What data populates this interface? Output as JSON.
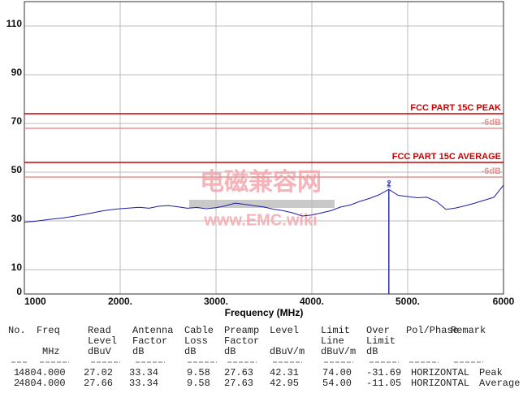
{
  "chart_data": {
    "type": "line",
    "xlabel": "Frequency (MHz)",
    "xlim": [
      1000,
      6000
    ],
    "xticks": [
      {
        "value": 1000,
        "label": "1000"
      },
      {
        "value": 2000,
        "label": "2000."
      },
      {
        "value": 3000,
        "label": "3000."
      },
      {
        "value": 4000,
        "label": "4000."
      },
      {
        "value": 5000,
        "label": "5000."
      },
      {
        "value": 6000,
        "label": "6000"
      }
    ],
    "ylim": [
      0,
      120
    ],
    "yticks": [
      0,
      10,
      30,
      50,
      70,
      90,
      110
    ],
    "grid": true,
    "x": [
      1000,
      1100,
      1200,
      1300,
      1400,
      1500,
      1600,
      1700,
      1800,
      1900,
      2000,
      2100,
      2200,
      2300,
      2400,
      2500,
      2600,
      2700,
      2800,
      2900,
      3000,
      3100,
      3200,
      3300,
      3400,
      3500,
      3600,
      3700,
      3800,
      3900,
      4000,
      4100,
      4200,
      4300,
      4400,
      4500,
      4600,
      4700,
      4804,
      4900,
      5000,
      5100,
      5200,
      5300,
      5400,
      5500,
      5600,
      5700,
      5800,
      5900,
      6000
    ],
    "series": [
      {
        "color": "#1c1ca8",
        "values": [
          29.5,
          29.8,
          30.3,
          30.8,
          31.2,
          31.8,
          32.5,
          33.2,
          34.0,
          34.6,
          35.0,
          35.3,
          35.6,
          35.2,
          36.0,
          36.3,
          35.8,
          35.2,
          35.5,
          35.0,
          35.4,
          36.2,
          37.3,
          36.8,
          36.2,
          35.7,
          34.8,
          34.2,
          33.3,
          32.0,
          32.4,
          33.3,
          34.2,
          35.7,
          36.5,
          38.0,
          39.2,
          40.7,
          42.95,
          40.5,
          40.0,
          39.5,
          39.7,
          38.0,
          34.7,
          35.3,
          36.2,
          37.3,
          38.5,
          39.7,
          44.7
        ]
      }
    ],
    "limits": [
      {
        "label": "FCC PART 15C PEAK",
        "value": 74,
        "color": "#cc0000"
      },
      {
        "label": "-6dB",
        "value": 68,
        "color": "#e89090"
      },
      {
        "label": "FCC PART 15C AVERAGE",
        "value": 54,
        "color": "#cc0000"
      },
      {
        "label": "-6dB",
        "value": 48,
        "color": "#e89090"
      }
    ],
    "markers": [
      {
        "label": "1",
        "x": 4804,
        "value": 42.31
      },
      {
        "label": "2",
        "x": 4804,
        "value": 42.95
      }
    ],
    "watermark": [
      "电磁兼容网",
      "www.EMC.wiki"
    ]
  },
  "table": {
    "header": [
      [
        "No."
      ],
      [
        "Freq",
        "MHz"
      ],
      [
        "Read",
        "Level",
        "dBuV"
      ],
      [
        "Antenna",
        "Factor",
        "dB"
      ],
      [
        "Cable",
        "Loss",
        "dB"
      ],
      [
        "Preamp",
        "Factor",
        "dB"
      ],
      [
        "Level",
        "dBuV/m"
      ],
      [
        "Limit",
        "Line",
        "dBuV/m"
      ],
      [
        "Over",
        "Limit",
        "dB"
      ],
      [
        "Pol/Phase"
      ],
      [
        "Remark"
      ]
    ],
    "rows": [
      [
        "1",
        "4804.000",
        "27.02",
        "33.34",
        "9.58",
        "27.63",
        "42.31",
        "74.00",
        "-31.69",
        "HORIZONTAL",
        "Peak"
      ],
      [
        "2",
        "4804.000",
        "27.66",
        "33.34",
        "9.58",
        "27.63",
        "42.95",
        "54.00",
        "-11.05",
        "HORIZONTAL",
        "Average"
      ]
    ]
  }
}
